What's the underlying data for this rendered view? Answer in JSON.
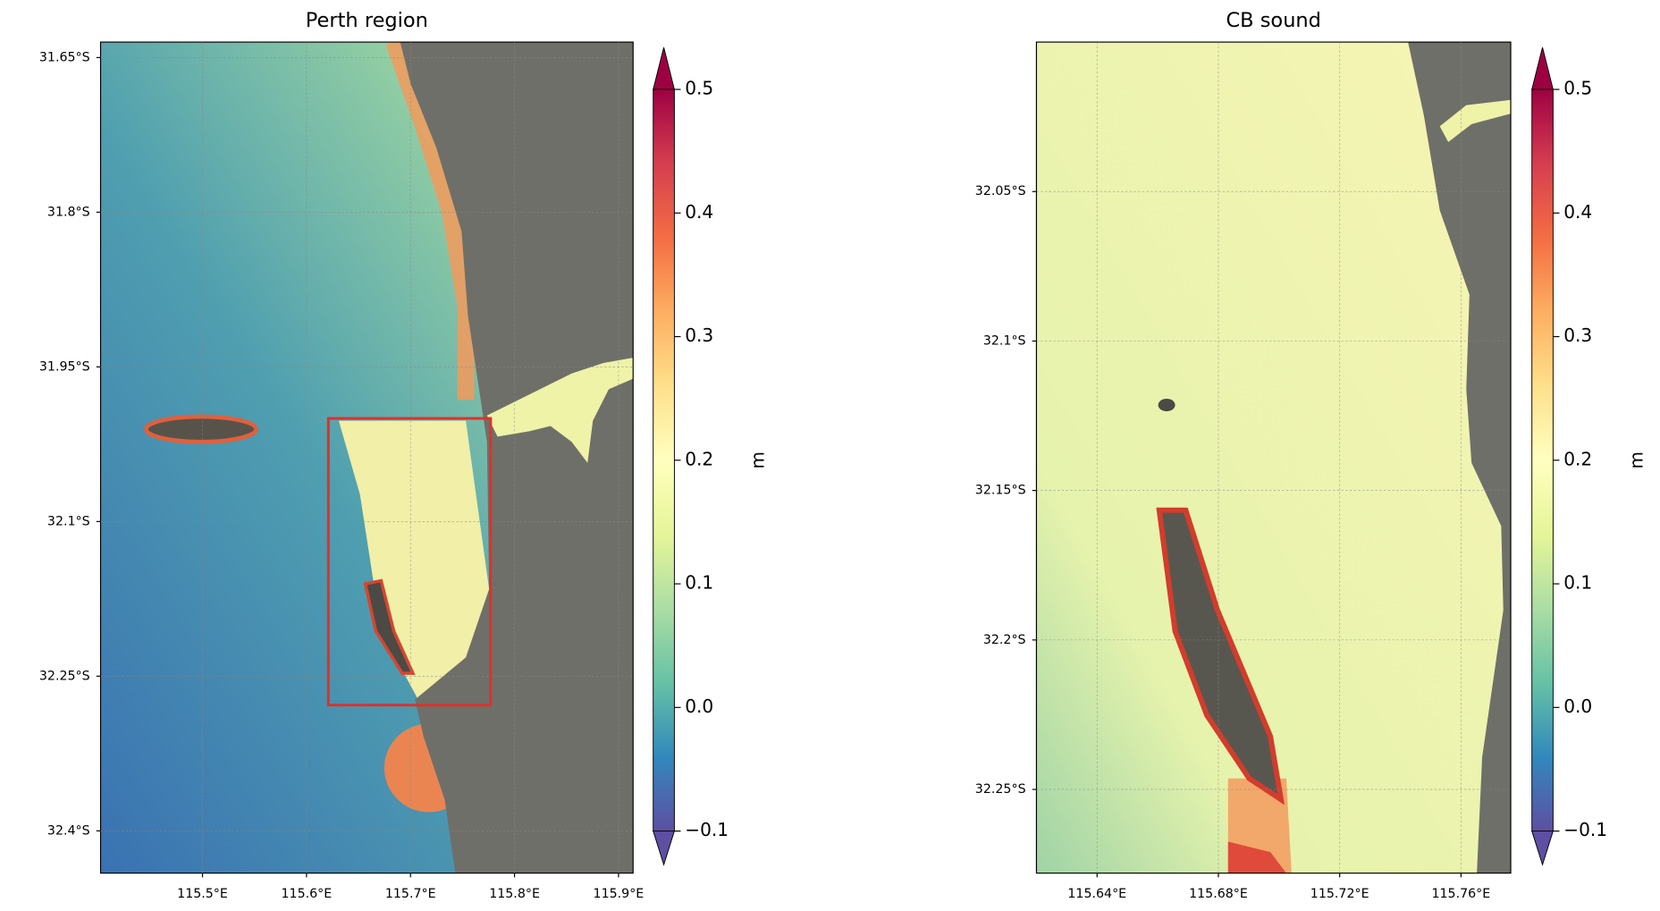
{
  "chart_data": [
    {
      "type": "map",
      "title": "Perth region",
      "xlim": [
        115.402,
        115.914
      ],
      "ylim": [
        -32.441,
        -31.635
      ],
      "xticks": [
        {
          "value": 115.5,
          "label": "115.5°E"
        },
        {
          "value": 115.6,
          "label": "115.6°E"
        },
        {
          "value": 115.7,
          "label": "115.7°E"
        },
        {
          "value": 115.8,
          "label": "115.8°E"
        },
        {
          "value": 115.9,
          "label": "115.9°E"
        }
      ],
      "yticks": [
        {
          "value": -31.65,
          "label": "31.65°S"
        },
        {
          "value": -31.8,
          "label": "31.8°S"
        },
        {
          "value": -31.95,
          "label": "31.95°S"
        },
        {
          "value": -32.1,
          "label": "32.1°S"
        },
        {
          "value": -32.25,
          "label": "32.25°S"
        },
        {
          "value": -32.4,
          "label": "32.4°S"
        }
      ],
      "grid": true,
      "box": {
        "x": [
          115.621,
          115.777
        ],
        "y": [
          -32.278,
          -32.0
        ],
        "color": "#e0302a"
      },
      "colorbar": {
        "label": "m",
        "lim": [
          -0.1,
          0.5
        ],
        "ticks": [
          {
            "value": -0.1,
            "label": "−0.1"
          },
          {
            "value": 0,
            "label": "0.0"
          },
          0.1,
          0.2,
          0.3,
          0.4,
          0.5
        ],
        "colors": [
          "#5e4fa2",
          "#3288bd",
          "#66c2a5",
          "#abdda4",
          "#e6f598",
          "#ffffbf",
          "#fee08b",
          "#fdae61",
          "#f46d43",
          "#d53e4f",
          "#9e0142"
        ]
      }
    },
    {
      "type": "map",
      "title": "CB sound",
      "xlim": [
        115.62,
        115.7764
      ],
      "ylim": [
        -32.278,
        -32.0
      ],
      "xticks": [
        {
          "value": 115.64,
          "label": "115.64°E"
        },
        {
          "value": 115.68,
          "label": "115.68°E"
        },
        {
          "value": 115.72,
          "label": "115.72°E"
        },
        {
          "value": 115.76,
          "label": "115.76°E"
        }
      ],
      "yticks": [
        {
          "value": -32.05,
          "label": "32.05°S"
        },
        {
          "value": -32.1,
          "label": "32.1°S"
        },
        {
          "value": -32.15,
          "label": "32.15°S"
        },
        {
          "value": -32.2,
          "label": "32.2°S"
        },
        {
          "value": -32.25,
          "label": "32.25°S"
        }
      ],
      "grid": true,
      "colorbar": {
        "label": "m",
        "lim": [
          -0.1,
          0.5
        ],
        "ticks": [
          {
            "value": -0.1,
            "label": "−0.1"
          },
          {
            "value": 0,
            "label": "0.0"
          },
          0.1,
          0.2,
          0.3,
          0.4,
          0.5
        ],
        "colors": [
          "#5e4fa2",
          "#3288bd",
          "#66c2a5",
          "#abdda4",
          "#e6f598",
          "#ffffbf",
          "#fee08b",
          "#fdae61",
          "#f46d43",
          "#d53e4f",
          "#9e0142"
        ]
      }
    }
  ]
}
